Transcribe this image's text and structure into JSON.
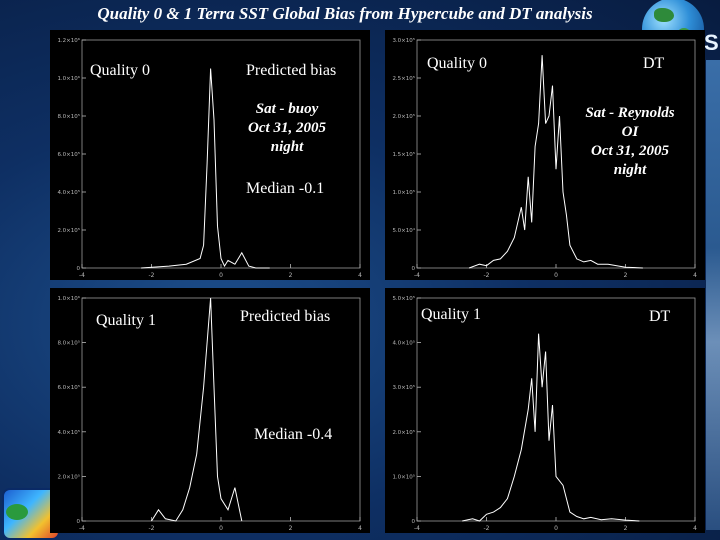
{
  "slide": {
    "title": "Quality 0 & 1 Terra SST Global Bias from Hypercube and DT analysis",
    "logo_letter": "S"
  },
  "icons": {
    "globe": "globe-icon",
    "seal": "agency-seal-icon"
  },
  "colors": {
    "background": "#0e2f63",
    "panel": "#000000",
    "curve": "#ffffff",
    "text": "#ffffff"
  },
  "panels": [
    {
      "quality_label": "Quality 0",
      "method_label": "Predicted bias",
      "annotation_lines": [
        "Sat - buoy",
        "Oct 31, 2005",
        "night"
      ],
      "median_label": "Median -0.1"
    },
    {
      "quality_label": "Quality 0",
      "method_label": "DT",
      "annotation_lines": [
        "Sat - Reynolds",
        "OI",
        "Oct 31, 2005",
        "night"
      ],
      "median_label": ""
    },
    {
      "quality_label": "Quality 1",
      "method_label": "Predicted bias",
      "annotation_lines": [],
      "median_label": "Median -0.4"
    },
    {
      "quality_label": "Quality 1",
      "method_label": "DT",
      "annotation_lines": [],
      "median_label": ""
    }
  ],
  "chart_data": [
    {
      "type": "line",
      "title": "",
      "xlabel": "",
      "ylabel": "",
      "xlim": [
        -4,
        4
      ],
      "ylim": [
        0,
        1.2
      ],
      "xticks": [
        "-4",
        "-2",
        "0",
        "2",
        "4"
      ],
      "yticks": [
        "0",
        "2.0×10⁵",
        "4.0×10⁵",
        "6.0×10⁵",
        "8.0×10⁵",
        "1.0×10⁶",
        "1.2×10⁶"
      ],
      "ytick_values": [
        0,
        0.2,
        0.4,
        0.6,
        0.8,
        1.0,
        1.2
      ],
      "x": [
        -2.3,
        -1.5,
        -1.0,
        -0.6,
        -0.5,
        -0.4,
        -0.3,
        -0.2,
        -0.1,
        0.0,
        0.1,
        0.2,
        0.4,
        0.6,
        0.8,
        1.0,
        1.4
      ],
      "series": [
        {
          "values": [
            0.0,
            0.01,
            0.02,
            0.05,
            0.12,
            0.55,
            1.05,
            0.78,
            0.22,
            0.05,
            0.01,
            0.04,
            0.02,
            0.08,
            0.01,
            0.0,
            0.0
          ]
        }
      ]
    },
    {
      "type": "line",
      "title": "",
      "xlabel": "",
      "ylabel": "",
      "xlim": [
        -4,
        4
      ],
      "ylim": [
        0,
        3.0
      ],
      "xticks": [
        "-4",
        "-2",
        "0",
        "2",
        "4"
      ],
      "yticks": [
        "0",
        "5.0×10⁴",
        "1.0×10⁵",
        "1.5×10⁵",
        "2.0×10⁵",
        "2.5×10⁵",
        "3.0×10⁵"
      ],
      "ytick_values": [
        0,
        0.5,
        1.0,
        1.5,
        2.0,
        2.5,
        3.0
      ],
      "x": [
        -2.5,
        -2.2,
        -2.0,
        -1.8,
        -1.6,
        -1.4,
        -1.2,
        -1.0,
        -0.9,
        -0.8,
        -0.7,
        -0.6,
        -0.5,
        -0.4,
        -0.3,
        -0.2,
        -0.1,
        0.0,
        0.1,
        0.2,
        0.3,
        0.4,
        0.6,
        0.8,
        1.0,
        1.2,
        1.5,
        2.0,
        2.5
      ],
      "series": [
        {
          "values": [
            0.0,
            0.05,
            0.03,
            0.1,
            0.12,
            0.22,
            0.4,
            0.8,
            0.5,
            1.2,
            0.6,
            1.6,
            1.9,
            2.8,
            1.9,
            2.0,
            2.4,
            1.3,
            2.0,
            1.0,
            0.7,
            0.3,
            0.12,
            0.08,
            0.1,
            0.05,
            0.05,
            0.01,
            0.0
          ]
        }
      ]
    },
    {
      "type": "line",
      "title": "",
      "xlabel": "",
      "ylabel": "",
      "xlim": [
        -4,
        4
      ],
      "ylim": [
        0,
        1.0
      ],
      "xticks": [
        "-4",
        "-2",
        "0",
        "2",
        "4"
      ],
      "yticks": [
        "0",
        "2.0×10⁵",
        "4.0×10⁵",
        "6.0×10⁵",
        "8.0×10⁵",
        "1.0×10⁶"
      ],
      "ytick_values": [
        0,
        0.2,
        0.4,
        0.6,
        0.8,
        1.0
      ],
      "x": [
        -2.0,
        -1.8,
        -1.6,
        -1.3,
        -1.1,
        -0.9,
        -0.7,
        -0.5,
        -0.3,
        -0.2,
        -0.1,
        0.0,
        0.2,
        0.4,
        0.6
      ],
      "series": [
        {
          "values": [
            0.0,
            0.05,
            0.01,
            0.0,
            0.05,
            0.15,
            0.3,
            0.6,
            1.0,
            0.6,
            0.2,
            0.1,
            0.05,
            0.15,
            0.0
          ]
        }
      ]
    },
    {
      "type": "line",
      "title": "",
      "xlabel": "",
      "ylabel": "",
      "xlim": [
        -4,
        4
      ],
      "ylim": [
        0,
        5.0
      ],
      "xticks": [
        "-4",
        "-2",
        "0",
        "2",
        "4"
      ],
      "yticks": [
        "0",
        "1.0×10⁵",
        "2.0×10⁵",
        "3.0×10⁵",
        "4.0×10⁵",
        "5.0×10⁵"
      ],
      "ytick_values": [
        0,
        1.0,
        2.0,
        3.0,
        4.0,
        5.0
      ],
      "x": [
        -2.7,
        -2.4,
        -2.2,
        -2.0,
        -1.8,
        -1.6,
        -1.4,
        -1.2,
        -1.0,
        -0.8,
        -0.7,
        -0.6,
        -0.5,
        -0.4,
        -0.3,
        -0.2,
        -0.1,
        0.0,
        0.2,
        0.4,
        0.6,
        0.8,
        1.0,
        1.3,
        1.6,
        2.0,
        2.4
      ],
      "series": [
        {
          "values": [
            0.0,
            0.05,
            0.0,
            0.15,
            0.2,
            0.3,
            0.5,
            1.0,
            1.6,
            2.5,
            3.2,
            2.0,
            4.2,
            3.0,
            3.8,
            1.8,
            2.6,
            1.0,
            0.8,
            0.2,
            0.1,
            0.05,
            0.08,
            0.03,
            0.05,
            0.02,
            0.0
          ]
        }
      ]
    }
  ]
}
